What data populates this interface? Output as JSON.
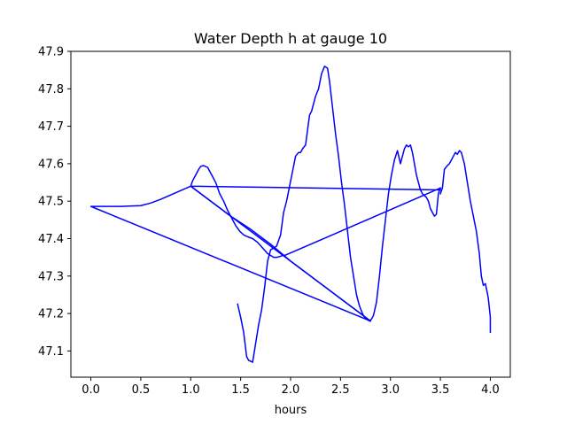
{
  "chart_data": {
    "type": "line",
    "title": "Water Depth h at gauge 10",
    "xlabel": "hours",
    "ylabel": "",
    "xlim": [
      -0.2,
      4.2
    ],
    "ylim": [
      47.03,
      47.9
    ],
    "grid": false,
    "legend": "none",
    "x_ticks": [
      {
        "value": 0.0,
        "label": "0.0"
      },
      {
        "value": 0.5,
        "label": "0.5"
      },
      {
        "value": 1.0,
        "label": "1.0"
      },
      {
        "value": 1.5,
        "label": "1.5"
      },
      {
        "value": 2.0,
        "label": "2.0"
      },
      {
        "value": 2.5,
        "label": "2.5"
      },
      {
        "value": 3.0,
        "label": "3.0"
      },
      {
        "value": 3.5,
        "label": "3.5"
      },
      {
        "value": 4.0,
        "label": "4.0"
      }
    ],
    "y_ticks": [
      {
        "value": 47.1,
        "label": "47.1"
      },
      {
        "value": 47.2,
        "label": "47.2"
      },
      {
        "value": 47.3,
        "label": "47.3"
      },
      {
        "value": 47.4,
        "label": "47.4"
      },
      {
        "value": 47.5,
        "label": "47.5"
      },
      {
        "value": 47.6,
        "label": "47.6"
      },
      {
        "value": 47.7,
        "label": "47.7"
      },
      {
        "value": 47.8,
        "label": "47.8"
      },
      {
        "value": 47.9,
        "label": "47.9"
      }
    ],
    "series": [
      {
        "color": "#0000ff",
        "x": [
          1.47,
          1.5,
          1.53,
          1.56,
          1.58,
          1.62,
          1.65,
          1.68,
          1.71,
          1.74,
          1.77,
          1.8,
          1.83,
          1.86,
          1.9,
          1.93,
          1.96,
          1.99,
          2.02,
          2.05,
          2.08,
          2.1,
          2.12,
          2.15,
          2.17,
          2.19,
          2.21,
          2.23,
          2.25,
          2.28,
          2.31,
          2.34,
          2.37,
          2.39,
          2.42,
          2.45,
          2.48,
          2.51,
          2.54,
          2.57,
          2.6,
          2.63,
          2.66,
          2.69,
          2.72,
          2.74,
          2.76,
          2.79,
          2.81,
          2.83,
          2.86,
          2.89,
          2.92,
          2.95,
          2.98,
          3.01,
          3.04,
          3.07,
          3.1,
          3.12,
          3.14,
          3.16,
          3.18,
          3.2,
          3.22,
          3.24,
          3.26,
          3.28,
          3.3,
          3.32,
          3.34,
          3.36,
          3.38,
          3.4,
          3.42,
          3.44,
          3.46,
          3.48,
          3.5
        ],
        "y": [
          47.225,
          47.19,
          47.15,
          47.085,
          47.075,
          47.07,
          47.12,
          47.17,
          47.21,
          47.27,
          47.34,
          47.37,
          47.375,
          47.38,
          47.41,
          47.47,
          47.5,
          47.54,
          47.58,
          47.62,
          47.63,
          47.63,
          47.64,
          47.65,
          47.69,
          47.73,
          47.74,
          47.76,
          47.78,
          47.8,
          47.84,
          47.86,
          47.855,
          47.82,
          47.75,
          47.68,
          47.62,
          47.55,
          47.49,
          47.42,
          47.35,
          47.3,
          47.25,
          47.22,
          47.2,
          47.19,
          47.185,
          47.18,
          47.185,
          47.195,
          47.23,
          47.3,
          47.38,
          47.45,
          47.52,
          47.57,
          47.61,
          47.635,
          47.6,
          47.62,
          47.64,
          47.65,
          47.645,
          47.65,
          47.63,
          47.6,
          47.57,
          47.55,
          47.53,
          47.52,
          47.515,
          47.51,
          47.5,
          47.48,
          47.47,
          47.46,
          47.465,
          47.52,
          47.535
        ]
      },
      {
        "color": "#0000ff",
        "x": [
          3.5,
          3.52,
          3.54,
          3.57,
          3.59,
          3.62,
          3.65,
          3.67,
          3.69,
          3.71,
          3.74,
          3.77,
          3.8,
          3.83,
          3.86,
          3.89,
          3.91,
          3.93,
          3.95,
          3.97,
          3.98,
          4.0,
          4.0
        ],
        "y": [
          47.52,
          47.535,
          47.585,
          47.595,
          47.6,
          47.615,
          47.63,
          47.625,
          47.635,
          47.63,
          47.6,
          47.55,
          47.5,
          47.46,
          47.42,
          47.36,
          47.3,
          47.275,
          47.28,
          47.255,
          47.24,
          47.19,
          47.15
        ]
      },
      {
        "color": "#0000ff",
        "x": [
          3.5,
          1.0,
          0.7,
          0.6,
          0.5,
          0.3,
          0.1,
          0.0,
          2.8,
          1.0,
          1.02,
          1.05,
          1.08,
          1.1,
          1.13,
          1.17,
          1.21,
          1.25,
          1.29,
          1.33,
          1.37,
          1.41,
          1.45,
          1.49,
          1.53,
          1.57,
          1.62,
          1.67,
          1.72,
          1.77,
          1.8,
          1.83,
          1.86,
          1.89,
          1.92,
          1.95,
          3.5
        ],
        "y": [
          47.53,
          47.54,
          47.505,
          47.495,
          47.488,
          47.486,
          47.486,
          47.486,
          47.18,
          47.54,
          47.555,
          47.57,
          47.585,
          47.593,
          47.595,
          47.59,
          47.57,
          47.55,
          47.52,
          47.5,
          47.475,
          47.455,
          47.435,
          47.42,
          47.41,
          47.405,
          47.4,
          47.39,
          47.375,
          47.36,
          47.355,
          47.35,
          47.35,
          47.352,
          47.355,
          47.356,
          47.535
        ]
      },
      {
        "color": "#0000ff",
        "x": [
          1.0,
          1.2,
          1.4,
          1.6,
          1.8,
          2.0,
          2.2,
          2.4,
          2.6,
          2.75,
          2.8
        ],
        "y": [
          47.54,
          47.5,
          47.46,
          47.425,
          47.385,
          47.34,
          47.3,
          47.26,
          47.22,
          47.19,
          47.18
        ]
      }
    ]
  }
}
